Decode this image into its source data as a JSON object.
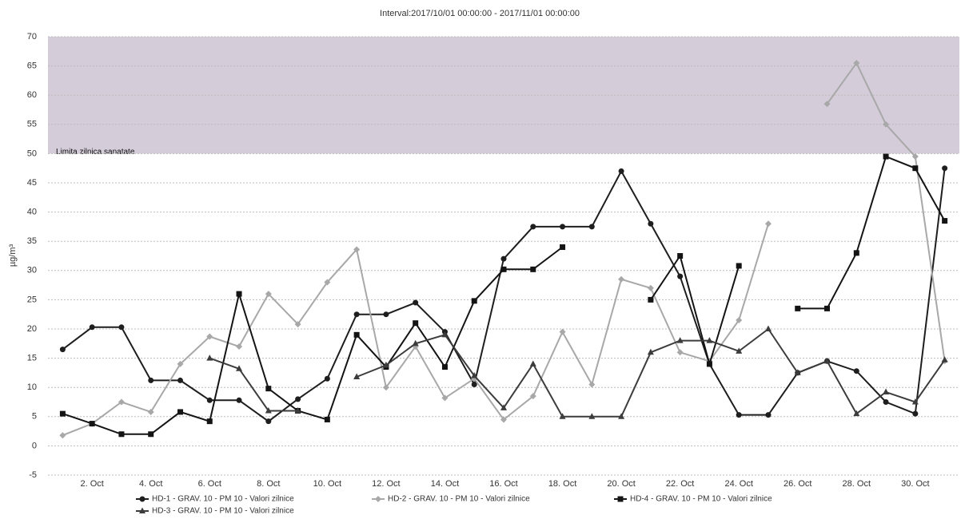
{
  "chart_data": {
    "type": "line",
    "title": "Interval:2017/10/01 00:00:00 - 2017/11/01 00:00:00",
    "y_label": "µg/m³",
    "categories": [
      null,
      "2. Oct",
      null,
      "4. Oct",
      null,
      "6. Oct",
      null,
      "8. Oct",
      null,
      "10. Oct",
      null,
      "12. Oct",
      null,
      "14. Oct",
      null,
      "16. Oct",
      null,
      "18. Oct",
      null,
      "20. Oct",
      null,
      "22. Oct",
      null,
      "24. Oct",
      null,
      "26. Oct",
      null,
      "28. Oct",
      null,
      "30. Oct",
      null
    ],
    "ylim": [
      -5,
      70
    ],
    "yticks": [
      -5,
      0,
      5,
      10,
      15,
      20,
      25,
      30,
      35,
      40,
      45,
      50,
      55,
      60,
      65,
      70
    ],
    "grid": true,
    "plot_band": {
      "from": 50,
      "to": 70,
      "label": "Limita zilnica sanatate",
      "color": "#c9bfd0"
    },
    "series": [
      {
        "name": "HD-1 - GRAV. 10 - PM 10 - Valori zilnice",
        "color": "#1e1e1e",
        "marker": "circle",
        "values": [
          16.5,
          20.3,
          20.3,
          11.2,
          11.2,
          7.8,
          7.8,
          4.2,
          8,
          11.5,
          22.5,
          22.5,
          24.5,
          19.5,
          10.5,
          32,
          37.5,
          37.5,
          37.5,
          47,
          38,
          29,
          14,
          5.3,
          5.3,
          12.5,
          14.5,
          12.8,
          7.5,
          5.5,
          47.5
        ]
      },
      {
        "name": "HD-2 - GRAV. 10 - PM 10 - Valori zilnice",
        "color": "#a8a8a8",
        "marker": "diamond",
        "values": [
          1.8,
          3.8,
          7.5,
          5.8,
          14,
          18.7,
          17,
          26,
          20.8,
          28,
          33.6,
          10,
          17,
          8.2,
          11.5,
          4.5,
          8.5,
          19.5,
          10.5,
          28.5,
          27,
          16,
          14.5,
          21.5,
          38,
          null,
          58.5,
          65.5,
          55,
          49.5,
          14.5
        ]
      },
      {
        "name": "HD-4 - GRAV. 10 - PM 10 - Valori zilnice",
        "color": "#141414",
        "marker": "square",
        "values": [
          5.5,
          3.8,
          2,
          2,
          5.8,
          4.2,
          26,
          9.8,
          6,
          4.5,
          19,
          13.5,
          21,
          13.5,
          24.8,
          30.2,
          30.2,
          34,
          null,
          null,
          25,
          32.5,
          14,
          30.8,
          null,
          23.5,
          23.5,
          33,
          49.5,
          47.5,
          38.5
        ]
      },
      {
        "name": "HD-3 - GRAV. 10 - PM 10 - Valori zilnice",
        "color": "#3c3c3c",
        "marker": "triangle",
        "values": [
          null,
          null,
          null,
          null,
          null,
          15,
          13.2,
          6,
          6,
          null,
          11.8,
          13.8,
          17.5,
          19,
          12,
          6.5,
          14,
          5,
          5,
          5,
          16,
          18,
          18,
          16.2,
          20,
          12.5,
          14.5,
          5.5,
          9.2,
          7.5,
          14.7
        ]
      }
    ]
  }
}
